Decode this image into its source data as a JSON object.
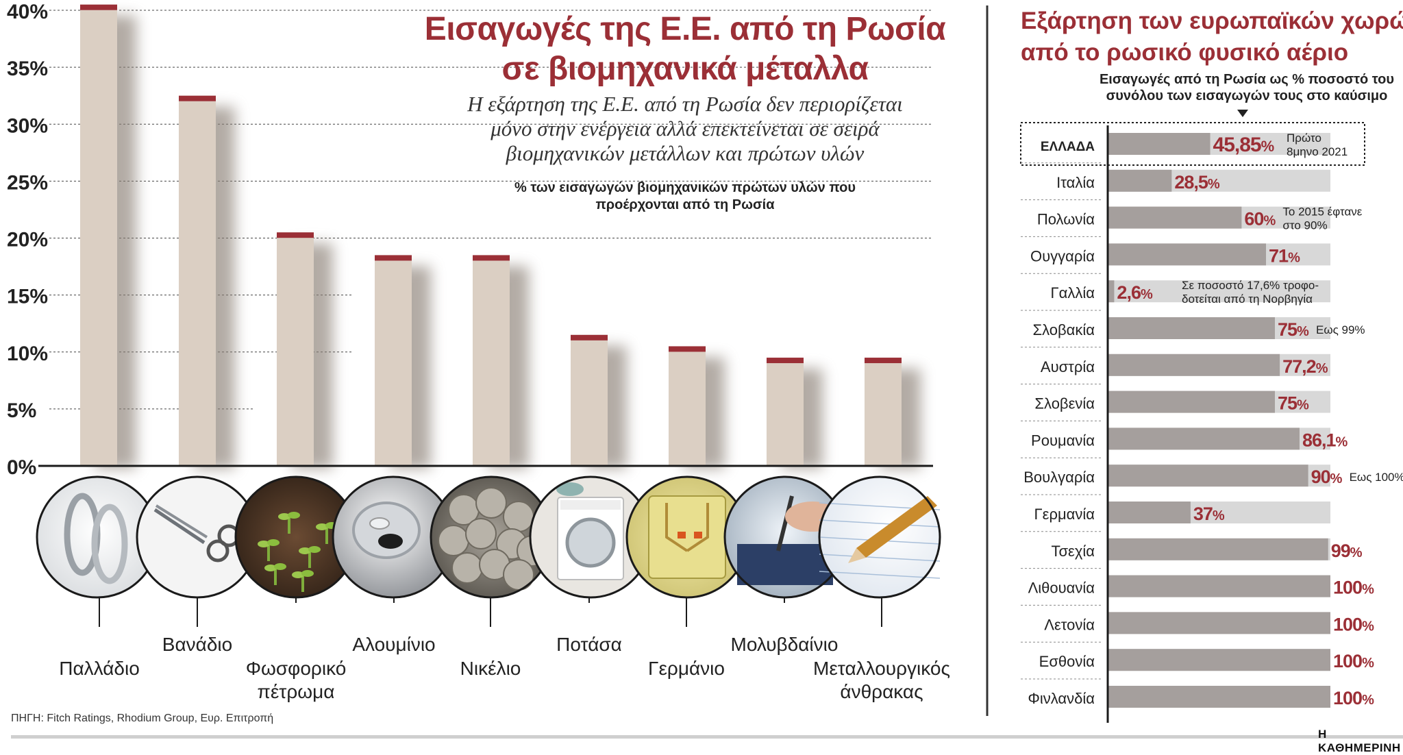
{
  "left_title_line1": "Εισαγωγές της Ε.Ε. από τη Ρωσία",
  "left_title_line2": "σε βιομηχανικά μέταλλα",
  "left_subtitle_line1": "Η εξάρτηση της Ε.Ε. από τη Ρωσία δεν περιορίζεται",
  "left_subtitle_line2": "μόνο στην ενέργεια αλλά επεκτείνεται σε σειρά",
  "left_subtitle_line3": "βιομηχανικών μετάλλων και πρώτων υλών",
  "left_unit_line1": "% των εισαγωγών βιομηχανικών πρώτων υλών που",
  "left_unit_line2": "προέρχονται από τη Ρωσία",
  "right_title_line1": "Εξάρτηση των ευρωπαϊκών χωρών",
  "right_title_line2": "από το ρωσικό φυσικό αέριο",
  "right_note_line1": "Εισαγωγές από τη Ρωσία ως % ποσοστό του",
  "right_note_line2": "συνόλου των εισαγωγών τους στο καύσιμο",
  "source": "ΠΗΓΗ: Fitch Ratings, Rhodium Group, Ευρ. Επιτροπή",
  "brand": "Η ΚΑΘΗΜΕΡΙΝΗ",
  "colors": {
    "accent": "#9b2f36",
    "bar": "#dbcfc3",
    "right_bar": "#a59f9d",
    "track": "#d8d8d8"
  },
  "chart_data": [
    {
      "type": "bar",
      "title": "Εισαγωγές της Ε.Ε. από τη Ρωσία σε βιομηχανικά μέταλλα",
      "ylabel": "% των εισαγωγών βιομηχανικών πρώτων υλών που προέρχονται από τη Ρωσία",
      "ylim": [
        0,
        40
      ],
      "y_ticks": [
        "0%",
        "5%",
        "10%",
        "15%",
        "20%",
        "25%",
        "30%",
        "35%",
        "40%"
      ],
      "categories": [
        {
          "line1": "Παλλάδιο",
          "line2": "",
          "icon": "rings-icon"
        },
        {
          "line1": "Βανάδιο",
          "line2": "",
          "icon": "scissors-icon"
        },
        {
          "line1": "Φωσφορικό",
          "line2": "πέτρωμα",
          "icon": "seedlings-icon"
        },
        {
          "line1": "Αλουμίνιο",
          "line2": "",
          "icon": "can-icon"
        },
        {
          "line1": "Νικέλιο",
          "line2": "",
          "icon": "coins-icon"
        },
        {
          "line1": "Ποτάσα",
          "line2": "",
          "icon": "washing-machine-icon"
        },
        {
          "line1": "Γερμάνιο",
          "line2": "",
          "icon": "circuit-board-icon"
        },
        {
          "line1": "Μολυβδαίνιο",
          "line2": "",
          "icon": "soldering-icon"
        },
        {
          "line1": "Μεταλλουργικός",
          "line2": "άνθρακας",
          "icon": "pencil-icon"
        }
      ],
      "values": [
        40.5,
        32.5,
        20.5,
        18.5,
        18.5,
        11.5,
        10.5,
        9.5,
        9.5
      ]
    },
    {
      "type": "bar",
      "orientation": "horizontal",
      "title": "Εξάρτηση των ευρωπαϊκών χωρών από το ρωσικό φυσικό αέριο",
      "xlim": [
        0,
        100
      ],
      "rows": [
        {
          "country": "ΕΛΛΑΔΑ",
          "value": 45.85,
          "label": "45,85",
          "note1": "Πρώτο",
          "note2": "8μηνο 2021",
          "highlight": true
        },
        {
          "country": "Ιταλία",
          "value": 28.5,
          "label": "28,5",
          "note1": "",
          "note2": ""
        },
        {
          "country": "Πολωνία",
          "value": 60,
          "label": "60",
          "note1": "Το 2015 έφτανε",
          "note2": "στο 90%"
        },
        {
          "country": "Ουγγαρία",
          "value": 71,
          "label": "71",
          "note1": "",
          "note2": ""
        },
        {
          "country": "Γαλλία",
          "value": 2.6,
          "label": "2,6",
          "note1": "Σε ποσοστό 17,6% τροφο-",
          "note2": "δοτείται από τη Νορβηγία"
        },
        {
          "country": "Σλοβακία",
          "value": 75,
          "label": "75",
          "note1": "Εως 99%",
          "note2": ""
        },
        {
          "country": "Αυστρία",
          "value": 77.2,
          "label": "77,2",
          "note1": "",
          "note2": ""
        },
        {
          "country": "Σλοβενία",
          "value": 75,
          "label": "75",
          "note1": "",
          "note2": ""
        },
        {
          "country": "Ρουμανία",
          "value": 86.1,
          "label": "86,1",
          "note1": "",
          "note2": ""
        },
        {
          "country": "Βουλγαρία",
          "value": 90,
          "label": "90",
          "note1": "Εως 100%",
          "note2": ""
        },
        {
          "country": "Γερμανία",
          "value": 37,
          "label": "37",
          "note1": "",
          "note2": ""
        },
        {
          "country": "Τσεχία",
          "value": 99,
          "label": "99",
          "note1": "",
          "note2": ""
        },
        {
          "country": "Λιθουανία",
          "value": 100,
          "label": "100",
          "note1": "",
          "note2": ""
        },
        {
          "country": "Λετονία",
          "value": 100,
          "label": "100",
          "note1": "",
          "note2": ""
        },
        {
          "country": "Εσθονία",
          "value": 100,
          "label": "100",
          "note1": "",
          "note2": ""
        },
        {
          "country": "Φινλανδία",
          "value": 100,
          "label": "100",
          "note1": "",
          "note2": ""
        }
      ],
      "percent_sign": "%"
    }
  ]
}
